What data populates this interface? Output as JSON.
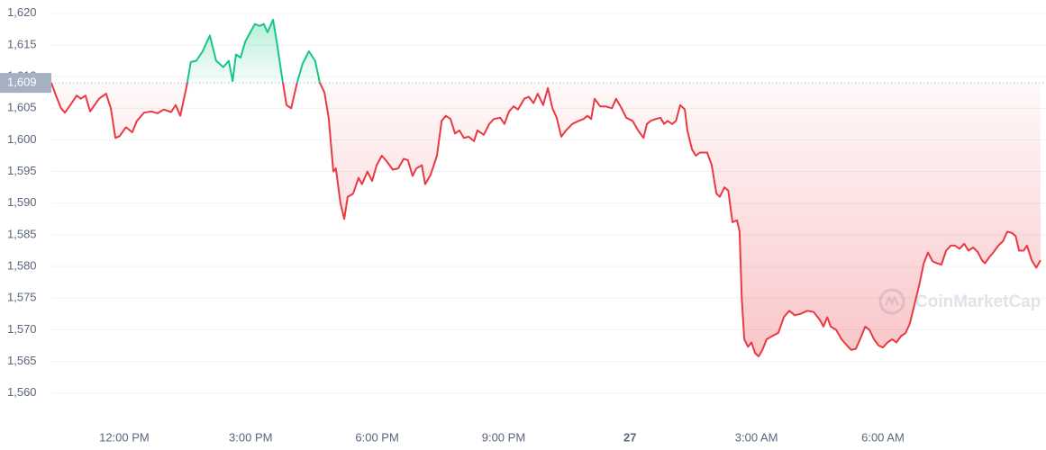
{
  "chart_data": {
    "type": "line",
    "watermark": "CoinMarketCap",
    "x": [
      10.27,
      10.38,
      10.5,
      10.59,
      10.72,
      10.87,
      10.97,
      11.08,
      11.19,
      11.4,
      11.57,
      11.68,
      11.79,
      11.89,
      12.04,
      12.19,
      12.3,
      12.47,
      12.64,
      12.79,
      12.94,
      13.11,
      13.22,
      13.33,
      13.48,
      13.58,
      13.71,
      13.86,
      14.03,
      14.18,
      14.35,
      14.48,
      14.57,
      14.65,
      14.76,
      14.87,
      14.99,
      15.1,
      15.21,
      15.31,
      15.4,
      15.53,
      15.63,
      15.74,
      15.85,
      15.96,
      16.1,
      16.23,
      16.38,
      16.53,
      16.64,
      16.75,
      16.85,
      16.96,
      17.02,
      17.13,
      17.22,
      17.3,
      17.43,
      17.56,
      17.64,
      17.77,
      17.88,
      17.99,
      18.11,
      18.24,
      18.37,
      18.5,
      18.63,
      18.73,
      18.84,
      18.93,
      19.06,
      19.14,
      19.27,
      19.42,
      19.53,
      19.63,
      19.74,
      19.85,
      19.95,
      20.06,
      20.17,
      20.3,
      20.38,
      20.53,
      20.66,
      20.77,
      20.92,
      21.02,
      21.13,
      21.24,
      21.34,
      21.49,
      21.6,
      21.71,
      21.81,
      21.94,
      22.05,
      22.16,
      22.26,
      22.37,
      22.48,
      22.63,
      22.78,
      22.9,
      22.99,
      23.08,
      23.16,
      23.29,
      23.42,
      23.57,
      23.67,
      23.8,
      23.91,
      24.06,
      24.19,
      24.32,
      24.4,
      24.49,
      24.61,
      24.72,
      24.81,
      24.89,
      25.0,
      25.09,
      25.19,
      25.3,
      25.36,
      25.47,
      25.56,
      25.66,
      25.83,
      25.94,
      26.05,
      26.13,
      26.24,
      26.33,
      26.43,
      26.54,
      26.6,
      26.65,
      26.71,
      26.8,
      26.88,
      26.97,
      27.05,
      27.14,
      27.24,
      27.37,
      27.52,
      27.65,
      27.78,
      27.91,
      28.04,
      28.21,
      28.36,
      28.51,
      28.59,
      28.68,
      28.76,
      28.89,
      29.02,
      29.15,
      29.25,
      29.36,
      29.49,
      29.58,
      29.68,
      29.79,
      29.9,
      30.0,
      30.11,
      30.22,
      30.32,
      30.43,
      30.54,
      30.64,
      30.75,
      30.86,
      30.97,
      31.07,
      31.18,
      31.29,
      31.39,
      31.5,
      31.61,
      31.71,
      31.82,
      31.93,
      32.03,
      32.14,
      32.25,
      32.35,
      32.42,
      32.53,
      32.63,
      32.74,
      32.85,
      32.95,
      33.06,
      33.15,
      33.23,
      33.34,
      33.42,
      33.53,
      33.64,
      33.74
    ],
    "values": [
      1609,
      1607,
      1605,
      1604.3,
      1605.5,
      1607,
      1606.5,
      1607,
      1604.5,
      1606.5,
      1607.3,
      1605,
      1600.3,
      1600.6,
      1602,
      1601.2,
      1603,
      1604.3,
      1604.5,
      1604.2,
      1604.8,
      1604.4,
      1605.5,
      1603.8,
      1608.5,
      1612.3,
      1612.5,
      1614,
      1616.5,
      1612.5,
      1611.5,
      1612.5,
      1609.3,
      1613.5,
      1613,
      1615.5,
      1617,
      1618.3,
      1618,
      1618.3,
      1617,
      1619,
      1615,
      1610,
      1605.5,
      1605,
      1609,
      1612,
      1614,
      1612.5,
      1609,
      1607.5,
      1603.5,
      1595,
      1595.5,
      1590,
      1587.5,
      1591,
      1591.5,
      1594,
      1593,
      1595,
      1593.5,
      1596,
      1597.5,
      1596.5,
      1595.3,
      1595.5,
      1597,
      1596.8,
      1594.3,
      1595.5,
      1596,
      1593,
      1594.5,
      1597.5,
      1603,
      1603.8,
      1603.3,
      1601,
      1601.5,
      1600.3,
      1600.5,
      1599.8,
      1601.5,
      1600.8,
      1602.5,
      1603.3,
      1603.5,
      1602.5,
      1604.5,
      1605.3,
      1604.8,
      1606.5,
      1606.8,
      1605.8,
      1607.3,
      1605.5,
      1608.2,
      1605,
      1603.5,
      1600.5,
      1601.5,
      1602.5,
      1603,
      1603.3,
      1603.8,
      1603.3,
      1606.5,
      1605.3,
      1605.3,
      1605,
      1606.5,
      1605,
      1603.5,
      1603,
      1601.5,
      1600.3,
      1602.5,
      1603,
      1603.3,
      1603.5,
      1602.5,
      1603,
      1602.5,
      1603,
      1605.5,
      1604.8,
      1601.5,
      1598.5,
      1597.5,
      1598,
      1598,
      1596,
      1591.5,
      1591,
      1592.5,
      1592,
      1587,
      1587.3,
      1585.5,
      1575,
      1568.5,
      1567.3,
      1568,
      1566.3,
      1565.8,
      1566.8,
      1568.5,
      1569,
      1569.5,
      1572,
      1573,
      1572.3,
      1572.5,
      1573,
      1572.8,
      1571.5,
      1570.5,
      1572,
      1570.5,
      1570,
      1568.5,
      1567.5,
      1566.8,
      1567,
      1569,
      1570.5,
      1570,
      1568.5,
      1567.5,
      1567.2,
      1568,
      1568.5,
      1568,
      1569,
      1569.5,
      1571,
      1574,
      1577,
      1580.5,
      1582.2,
      1580.8,
      1580.5,
      1580.3,
      1582.5,
      1583.3,
      1583.3,
      1582.8,
      1583.6,
      1582.5,
      1583,
      1582.3,
      1581,
      1580.5,
      1581.5,
      1582.3,
      1583.3,
      1584,
      1585.5,
      1585.3,
      1584.8,
      1582.5,
      1582.5,
      1583.3,
      1581,
      1579.8,
      1581
    ],
    "baseline": {
      "value": 1609,
      "label": "1,609"
    },
    "up_color": "#16c784",
    "down_color": "#ea3943",
    "xlim": [
      10.27,
      33.87
    ],
    "xticks": [
      {
        "value": 12,
        "label": "12:00 PM"
      },
      {
        "value": 15,
        "label": "3:00 PM"
      },
      {
        "value": 18,
        "label": "6:00 PM"
      },
      {
        "value": 21,
        "label": "9:00 PM"
      },
      {
        "value": 24,
        "label": "27"
      },
      {
        "value": 27,
        "label": "3:00 AM"
      },
      {
        "value": 30,
        "label": "6:00 AM"
      }
    ],
    "ylim": [
      1555.7,
      1622.1
    ],
    "yticks": [
      {
        "value": 1560,
        "label": "1,560"
      },
      {
        "value": 1565,
        "label": "1,565"
      },
      {
        "value": 1570,
        "label": "1,570"
      },
      {
        "value": 1575,
        "label": "1,575"
      },
      {
        "value": 1580,
        "label": "1,580"
      },
      {
        "value": 1585,
        "label": "1,585"
      },
      {
        "value": 1590,
        "label": "1,590"
      },
      {
        "value": 1595,
        "label": "1,595"
      },
      {
        "value": 1600,
        "label": "1,600"
      },
      {
        "value": 1605,
        "label": "1,605"
      },
      {
        "value": 1610,
        "label": "1,610"
      },
      {
        "value": 1615,
        "label": "1,615"
      },
      {
        "value": 1620,
        "label": "1,620"
      }
    ],
    "grid": true
  }
}
